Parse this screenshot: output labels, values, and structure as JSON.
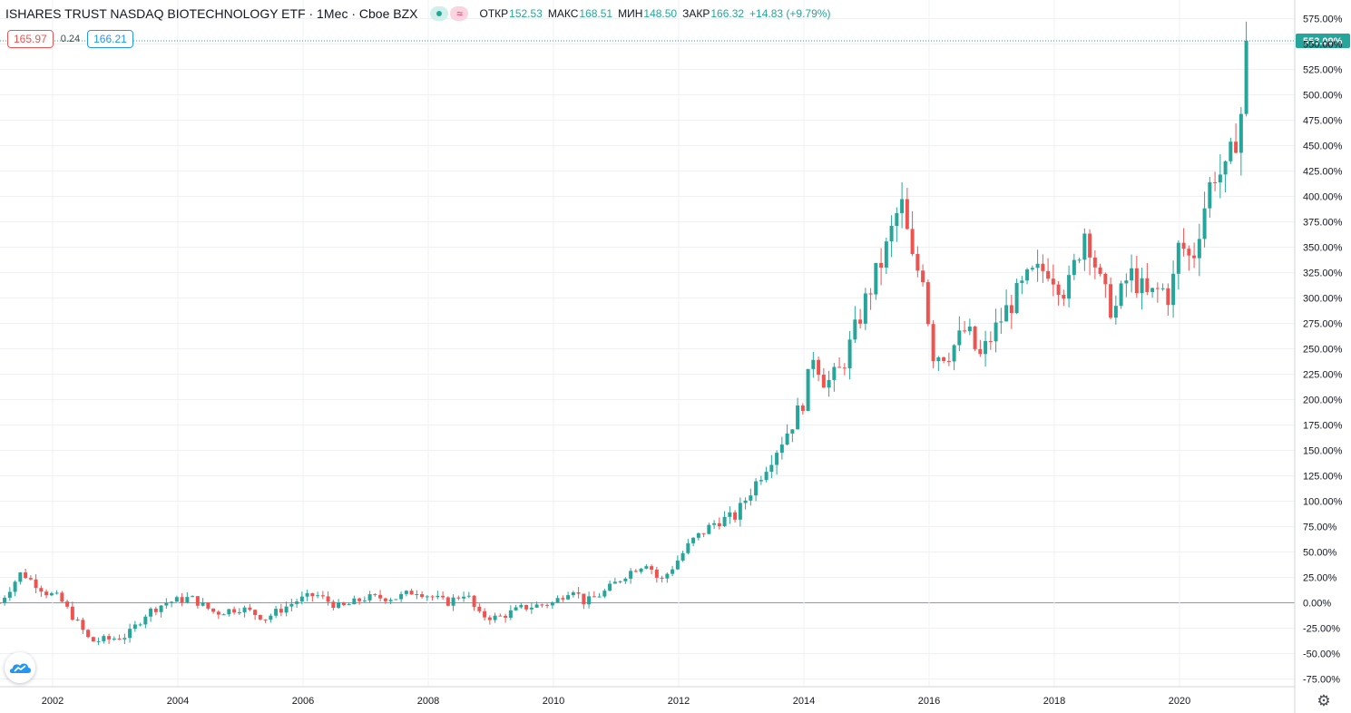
{
  "header": {
    "title": "ISHARES TRUST NASDAQ BIOTECHNOLOGY ETF · 1Мес · Cboe BZX",
    "open_label": "ОТКР",
    "open_value": "152.53",
    "high_label": "МАКС",
    "high_value": "168.51",
    "low_label": "МИН",
    "low_value": "148.50",
    "close_label": "ЗАКР",
    "close_value": "166.32",
    "change": "+14.83 (+9.79%)"
  },
  "quotes": {
    "bid": "165.97",
    "spread": "0.24",
    "ask": "166.21"
  },
  "colors": {
    "up": "#26a69a",
    "down": "#ef5350",
    "grid": "#eef0f3",
    "axis_text": "#131722",
    "zero_line": "#9598a1"
  },
  "icons": {
    "brand": "tradingview-cloud-icon",
    "settings": "gear-icon"
  },
  "chart_data": {
    "type": "candlestick",
    "title": "ISHARES TRUST NASDAQ BIOTECHNOLOGY ETF · 1Мес · Cboe BZX",
    "y_unit": "percent change",
    "ylim": [
      -85,
      585
    ],
    "yticks": [
      "575.00%",
      "550.00%",
      "525.00%",
      "500.00%",
      "475.00%",
      "450.00%",
      "425.00%",
      "400.00%",
      "375.00%",
      "350.00%",
      "325.00%",
      "300.00%",
      "275.00%",
      "250.00%",
      "225.00%",
      "200.00%",
      "175.00%",
      "150.00%",
      "125.00%",
      "100.00%",
      "75.00%",
      "50.00%",
      "25.00%",
      "0.00%",
      "-25.00%",
      "-50.00%",
      "-75.00%"
    ],
    "xticks": [
      "2002",
      "2004",
      "2006",
      "2008",
      "2010",
      "2012",
      "2014",
      "2016",
      "2018",
      "2020"
    ],
    "last_value_label": "553.09%",
    "last_value": 553.09,
    "anchors": [
      {
        "t": 2001.15,
        "v": 0
      },
      {
        "t": 2001.5,
        "v": 30
      },
      {
        "t": 2001.9,
        "v": 10
      },
      {
        "t": 2002.1,
        "v": 5
      },
      {
        "t": 2002.4,
        "v": -20
      },
      {
        "t": 2002.6,
        "v": -38
      },
      {
        "t": 2002.9,
        "v": -36
      },
      {
        "t": 2003.2,
        "v": -32
      },
      {
        "t": 2003.5,
        "v": -10
      },
      {
        "t": 2003.8,
        "v": 0
      },
      {
        "t": 2004.2,
        "v": 5
      },
      {
        "t": 2004.6,
        "v": -10
      },
      {
        "t": 2005.0,
        "v": -5
      },
      {
        "t": 2005.4,
        "v": -15
      },
      {
        "t": 2005.9,
        "v": 2
      },
      {
        "t": 2006.2,
        "v": 8
      },
      {
        "t": 2006.6,
        "v": -5
      },
      {
        "t": 2007.0,
        "v": 5
      },
      {
        "t": 2007.5,
        "v": 5
      },
      {
        "t": 2007.8,
        "v": 12
      },
      {
        "t": 2008.3,
        "v": 0
      },
      {
        "t": 2008.6,
        "v": 10
      },
      {
        "t": 2008.8,
        "v": -12
      },
      {
        "t": 2009.1,
        "v": -15
      },
      {
        "t": 2009.5,
        "v": -5
      },
      {
        "t": 2010.0,
        "v": 0
      },
      {
        "t": 2010.3,
        "v": 15
      },
      {
        "t": 2010.5,
        "v": 0
      },
      {
        "t": 2010.8,
        "v": 10
      },
      {
        "t": 2011.2,
        "v": 30
      },
      {
        "t": 2011.5,
        "v": 40
      },
      {
        "t": 2011.7,
        "v": 20
      },
      {
        "t": 2011.9,
        "v": 35
      },
      {
        "t": 2012.2,
        "v": 60
      },
      {
        "t": 2012.6,
        "v": 80
      },
      {
        "t": 2012.9,
        "v": 85
      },
      {
        "t": 2013.2,
        "v": 115
      },
      {
        "t": 2013.5,
        "v": 145
      },
      {
        "t": 2013.8,
        "v": 175
      },
      {
        "t": 2014.0,
        "v": 200
      },
      {
        "t": 2014.15,
        "v": 245
      },
      {
        "t": 2014.35,
        "v": 215
      },
      {
        "t": 2014.6,
        "v": 230
      },
      {
        "t": 2014.8,
        "v": 265
      },
      {
        "t": 2015.0,
        "v": 300
      },
      {
        "t": 2015.3,
        "v": 345
      },
      {
        "t": 2015.55,
        "v": 395
      },
      {
        "t": 2015.75,
        "v": 330
      },
      {
        "t": 2015.9,
        "v": 325
      },
      {
        "t": 2016.05,
        "v": 245
      },
      {
        "t": 2016.3,
        "v": 245
      },
      {
        "t": 2016.6,
        "v": 270
      },
      {
        "t": 2016.8,
        "v": 240
      },
      {
        "t": 2017.2,
        "v": 285
      },
      {
        "t": 2017.6,
        "v": 320
      },
      {
        "t": 2017.9,
        "v": 330
      },
      {
        "t": 2018.2,
        "v": 305
      },
      {
        "t": 2018.5,
        "v": 370
      },
      {
        "t": 2018.75,
        "v": 310
      },
      {
        "t": 2018.95,
        "v": 285
      },
      {
        "t": 2019.2,
        "v": 325
      },
      {
        "t": 2019.5,
        "v": 300
      },
      {
        "t": 2019.7,
        "v": 310
      },
      {
        "t": 2019.85,
        "v": 300
      },
      {
        "t": 2020.0,
        "v": 355
      },
      {
        "t": 2020.2,
        "v": 335
      },
      {
        "t": 2020.35,
        "v": 380
      },
      {
        "t": 2020.55,
        "v": 425
      },
      {
        "t": 2020.75,
        "v": 420
      },
      {
        "t": 2020.9,
        "v": 460
      },
      {
        "t": 2021.05,
        "v": 500
      },
      {
        "t": 2021.1,
        "v": 553
      }
    ]
  }
}
